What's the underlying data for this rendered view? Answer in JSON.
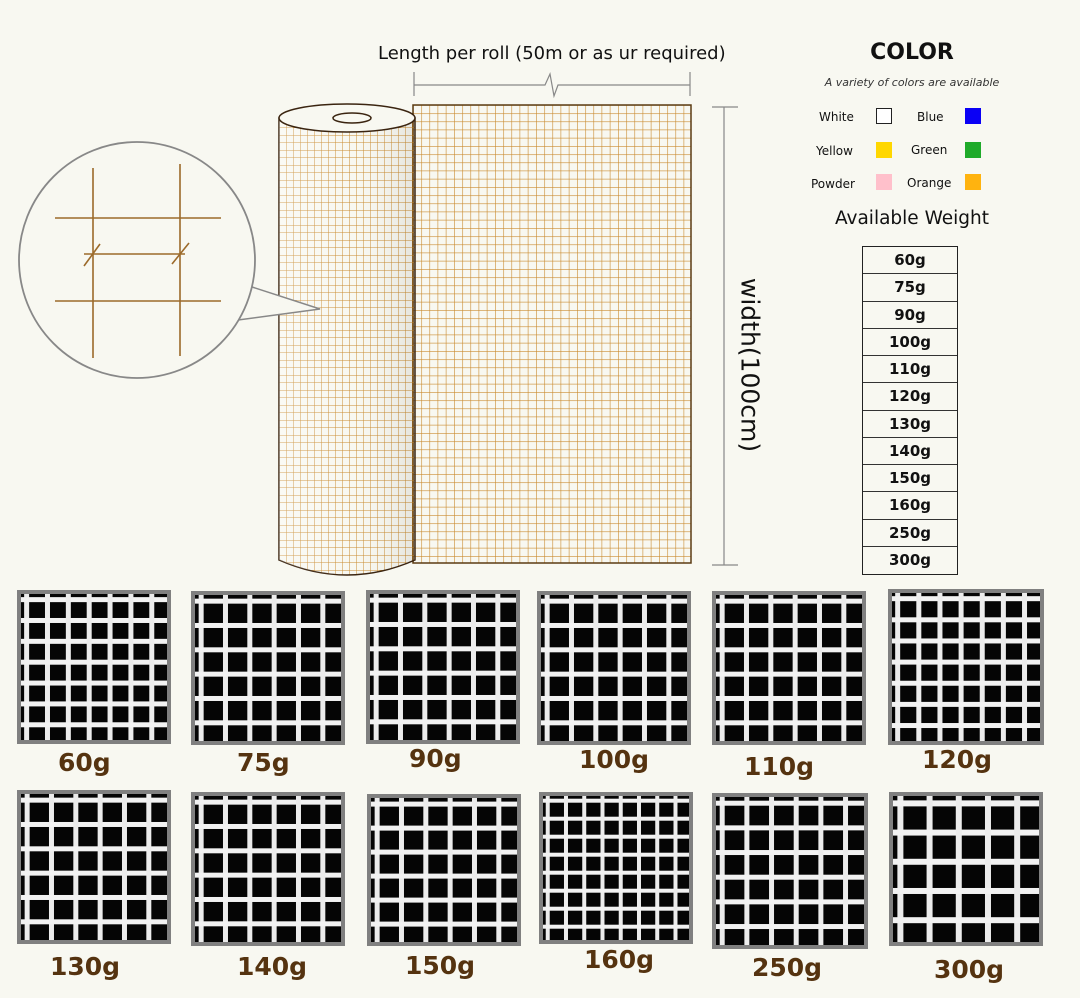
{
  "diagram": {
    "length_label": "Length per roll (50m or as ur required)",
    "width_label": "width(100cm)"
  },
  "color_panel": {
    "title": "COLOR",
    "subtitle": "A variety of colors are available",
    "colors": [
      {
        "name": "White",
        "hex": "#ffffff"
      },
      {
        "name": "Blue",
        "hex": "#0a00f5"
      },
      {
        "name": "Yellow",
        "hex": "#ffd700"
      },
      {
        "name": "Green",
        "hex": "#1faa2a"
      },
      {
        "name": "Powder",
        "hex": "#ffc0cb"
      },
      {
        "name": "Orange",
        "hex": "#ffb30f"
      }
    ]
  },
  "weights": {
    "title": "Available Weight",
    "items": [
      "60g",
      "75g",
      "90g",
      "100g",
      "110g",
      "120g",
      "130g",
      "140g",
      "150g",
      "160g",
      "250g",
      "300g"
    ]
  },
  "samples": [
    {
      "label": "60g",
      "mesh": 7
    },
    {
      "label": "75g",
      "mesh": 6
    },
    {
      "label": "90g",
      "mesh": 6
    },
    {
      "label": "100g",
      "mesh": 6
    },
    {
      "label": "110g",
      "mesh": 6
    },
    {
      "label": "120g",
      "mesh": 7
    },
    {
      "label": "130g",
      "mesh": 6
    },
    {
      "label": "140g",
      "mesh": 6
    },
    {
      "label": "150g",
      "mesh": 6
    },
    {
      "label": "160g",
      "mesh": 8
    },
    {
      "label": "250g",
      "mesh": 6
    },
    {
      "label": "300g",
      "mesh": 5
    }
  ],
  "theme": {
    "mesh_line": "#c98a2e",
    "sample_label": "#553310",
    "background": "#f8f8f1"
  }
}
